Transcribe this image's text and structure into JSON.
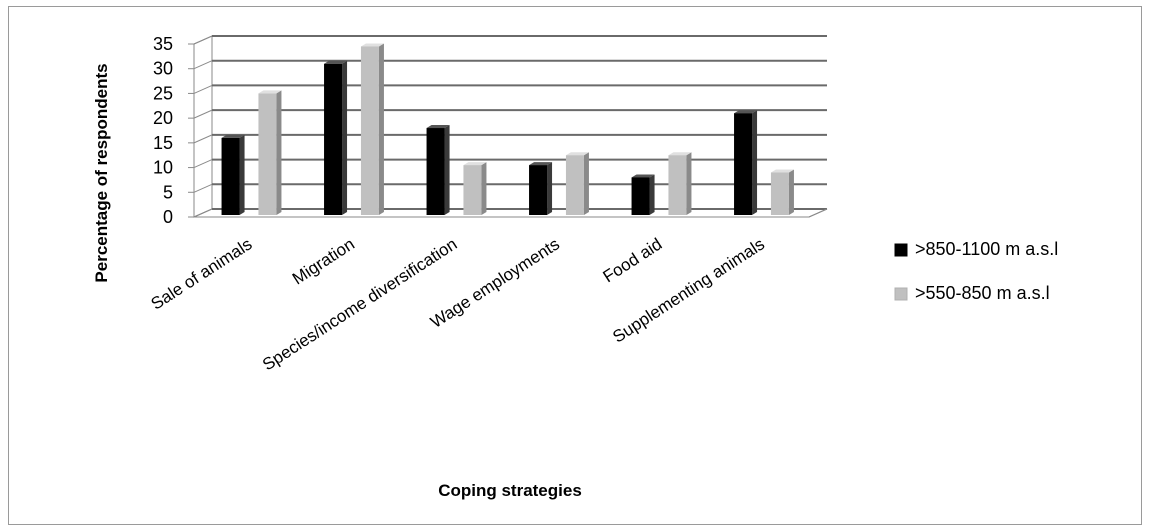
{
  "chart_data": {
    "type": "bar",
    "style": "3d-clustered-column",
    "title": "",
    "xlabel": "Coping strategies",
    "ylabel": "Percentage of respondents",
    "categories": [
      "Sale of animals",
      "Migration",
      "Species/income diversification",
      "Wage employments",
      "Food aid",
      "Supplementing  animals"
    ],
    "series": [
      {
        "name": ">850-1100 m a.s.l",
        "color": "#000000",
        "values": [
          16,
          31,
          18,
          10.5,
          8,
          21
        ]
      },
      {
        "name": ">550-850 m a.s.l",
        "color": "#c0c0c0",
        "values": [
          25,
          34.5,
          10.5,
          12.5,
          12.5,
          9
        ]
      }
    ],
    "yticks": [
      "0",
      "5",
      "10",
      "15",
      "20",
      "25",
      "30",
      "35"
    ],
    "ylim": [
      0,
      35
    ],
    "grid": true,
    "legend_position": "right"
  }
}
